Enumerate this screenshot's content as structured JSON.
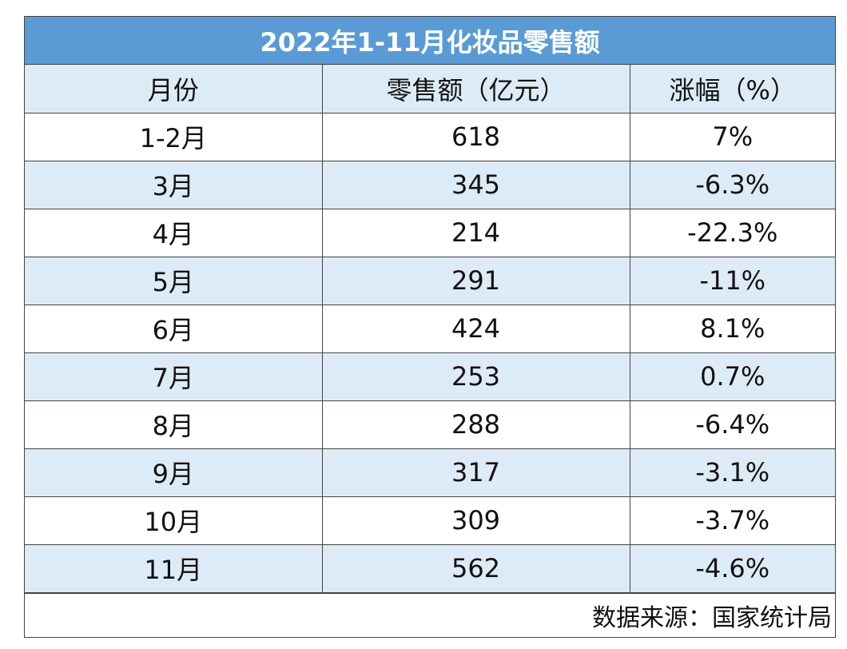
{
  "chart_data": {
    "type": "table",
    "title": "2022年1-11月化妆品零售额",
    "columns": [
      "月份",
      "零售额（亿元）",
      "涨幅（%）"
    ],
    "rows": [
      {
        "month": "1-2月",
        "sales": "618",
        "growth": "7%"
      },
      {
        "month": "3月",
        "sales": "345",
        "growth": "-6.3%"
      },
      {
        "month": "4月",
        "sales": "214",
        "growth": "-22.3%"
      },
      {
        "month": "5月",
        "sales": "291",
        "growth": "-11%"
      },
      {
        "month": "6月",
        "sales": "424",
        "growth": "8.1%"
      },
      {
        "month": "7月",
        "sales": "253",
        "growth": "0.7%"
      },
      {
        "month": "8月",
        "sales": "288",
        "growth": "-6.4%"
      },
      {
        "month": "9月",
        "sales": "317",
        "growth": "-3.1%"
      },
      {
        "month": "10月",
        "sales": "309",
        "growth": "-3.7%"
      },
      {
        "month": "11月",
        "sales": "562",
        "growth": "-4.6%"
      }
    ],
    "source": "数据来源：国家统计局"
  },
  "colors": {
    "title_background": "#5b9bd5",
    "title_text": "#ffffff",
    "band_background": "#ddebf7",
    "border": "#444444"
  }
}
